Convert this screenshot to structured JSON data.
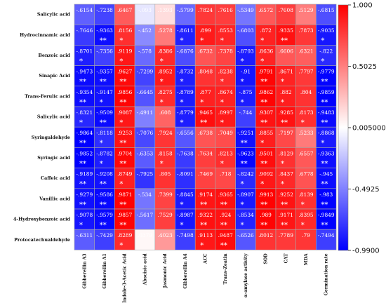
{
  "chart_data": {
    "type": "heatmap",
    "title": "",
    "xlabel": "",
    "ylabel": "",
    "rows": [
      "Salicylic acid",
      "Hydrocinnamic acid",
      "Benzoic acid",
      "Sinapic Acid",
      "Trans-Ferulic acid",
      "Salicylic acid",
      "Syringaldehyde",
      "Syringic acid",
      "Caffeic acid",
      "Vanillic acid",
      "4-Hydroxybenzoic acid",
      "Protocatechualdehyde"
    ],
    "columns": [
      "Gibberellin A3",
      "Gibberellin A1",
      "Indole-3-Acetic Acid",
      "Abscisic acid",
      "Jasmonic Acid",
      "Gibberellin A4",
      "ACC",
      "Trans-Zeatin",
      "α-amylase activity",
      "SOD",
      "CAT",
      "MDA",
      "Germination rate"
    ],
    "value_labels": [
      [
        "-.6154",
        "-.7238",
        ".6467",
        "-.093",
        ".1393",
        "-.5799",
        ".7824",
        ".7616",
        "-.5349",
        ".6572",
        ".7608",
        ".5129",
        "-.6815"
      ],
      [
        "-.7646",
        "-.9363",
        ".8156",
        "-.452",
        ".5278",
        "-.8611",
        ".899",
        ".8553",
        "-.6803",
        ".872",
        ".9335",
        ".7873",
        "-.9035"
      ],
      [
        "-.8701",
        "-.7356",
        ".9119",
        "-.578",
        ".8386",
        "-.6876",
        ".6732",
        ".7378",
        "-.8793",
        ".8636",
        ".6606",
        ".6321",
        "-.822"
      ],
      [
        "-.9473",
        "-.9357",
        ".9627",
        "-.7299",
        ".8952",
        "-.8732",
        ".8048",
        ".8238",
        "-.91",
        ".9791",
        ".8671",
        ".7797",
        "-.9779"
      ],
      [
        "-.9354",
        "-.9147",
        ".9856",
        "-.6645",
        ".8275",
        "-.8789",
        ".877",
        ".8674",
        "-.875",
        ".9862",
        ".882",
        ".804",
        "-.9859"
      ],
      [
        "-.8321",
        "-.9509",
        ".9087",
        "-.4911",
        ".608",
        "-.8779",
        ".9465",
        ".8997",
        "-.744",
        ".9307",
        ".9285",
        ".8173",
        "-.9483"
      ],
      [
        "-.9864",
        "-.8118",
        ".9253",
        "-.7076",
        ".7924",
        "-.6556",
        ".6738",
        ".7049",
        "-.9251",
        ".8855",
        ".7197",
        ".5233",
        "-.8868"
      ],
      [
        "-.9852",
        "-.8782",
        ".9704",
        "-.6353",
        ".8158",
        "-.7638",
        ".7634",
        ".8213",
        "-.9623",
        ".9501",
        ".8129",
        ".6557",
        "-.9363"
      ],
      [
        "-.9189",
        "-.9208",
        ".8749",
        "-.7925",
        ".805",
        "-.8091",
        ".7469",
        ".718",
        "-.8242",
        ".9092",
        ".8437",
        ".6778",
        "-.945"
      ],
      [
        "-.9279",
        "-.9586",
        ".9871",
        "-.534",
        ".7399",
        "-.8845",
        ".9174",
        ".9365",
        "-.8907",
        ".9913",
        ".9252",
        ".8139",
        "-.983"
      ],
      [
        "-.9078",
        "-.9579",
        ".9857",
        "-.5617",
        ".7529",
        "-.8987",
        ".9322",
        ".924",
        "-.8534",
        ".989",
        ".9171",
        ".8395",
        "-.9849"
      ],
      [
        "-.6311",
        "-.7429",
        ".8289",
        ".0379",
        ".4023",
        "-.7498",
        ".9113",
        ".9487",
        "-.6526",
        ".8012",
        ".7789",
        ".79",
        "-.7494"
      ]
    ],
    "colorbar": {
      "min": -0.99,
      "max": 1.0,
      "ticks": [
        "1.000",
        "0.5025",
        "0.005000",
        "-0.4925",
        "-0.9900"
      ],
      "colors": {
        "low": "#0000ff",
        "mid": "#ffffff",
        "high": "#ff0000"
      }
    },
    "significance": {
      "single": "*",
      "double": "**"
    }
  }
}
